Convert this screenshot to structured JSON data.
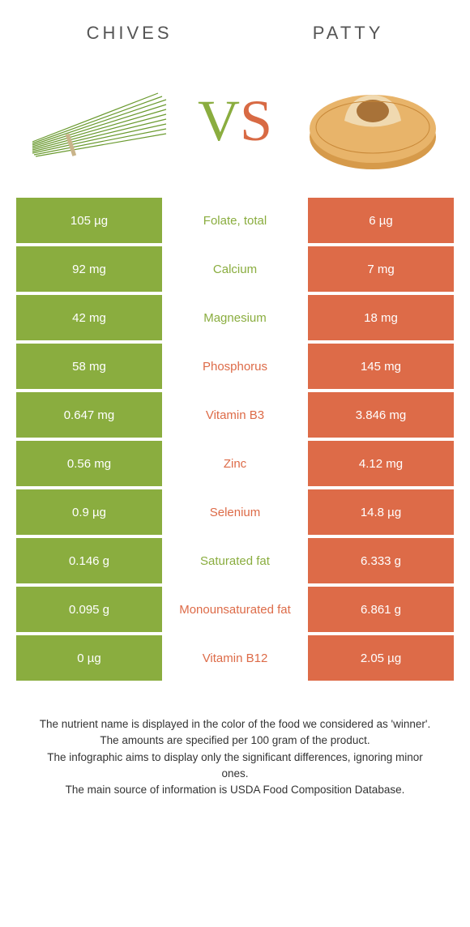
{
  "header": {
    "left": "Chives",
    "right": "Patty"
  },
  "vs": {
    "v": "V",
    "s": "S"
  },
  "colors": {
    "green": "#8aad3f",
    "orange": "#dd6b48",
    "text": "#555",
    "footer": "#333"
  },
  "rows": [
    {
      "left": "105 µg",
      "label": "Folate, total",
      "right": "6 µg",
      "winner": "green"
    },
    {
      "left": "92 mg",
      "label": "Calcium",
      "right": "7 mg",
      "winner": "green"
    },
    {
      "left": "42 mg",
      "label": "Magnesium",
      "right": "18 mg",
      "winner": "green"
    },
    {
      "left": "58 mg",
      "label": "Phosphorus",
      "right": "145 mg",
      "winner": "orange"
    },
    {
      "left": "0.647 mg",
      "label": "Vitamin B3",
      "right": "3.846 mg",
      "winner": "orange"
    },
    {
      "left": "0.56 mg",
      "label": "Zinc",
      "right": "4.12 mg",
      "winner": "orange"
    },
    {
      "left": "0.9 µg",
      "label": "Selenium",
      "right": "14.8 µg",
      "winner": "orange"
    },
    {
      "left": "0.146 g",
      "label": "Saturated fat",
      "right": "6.333 g",
      "winner": "green"
    },
    {
      "left": "0.095 g",
      "label": "Monounsaturated fat",
      "right": "6.861 g",
      "winner": "orange"
    },
    {
      "left": "0 µg",
      "label": "Vitamin B12",
      "right": "2.05 µg",
      "winner": "orange"
    }
  ],
  "footer": {
    "l1": "The nutrient name is displayed in the color of the food we considered as 'winner'.",
    "l2": "The amounts are specified per 100 gram of the product.",
    "l3": "The infographic aims to display only the significant differences, ignoring minor ones.",
    "l4": "The main source of information is USDA Food Composition Database."
  }
}
